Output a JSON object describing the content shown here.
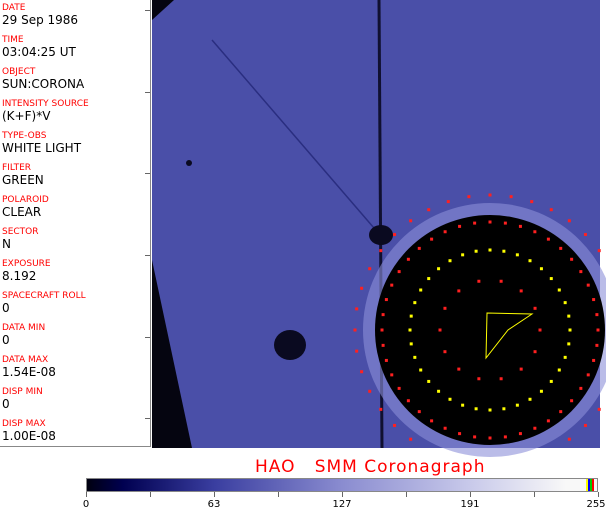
{
  "fields": [
    {
      "label": "DATE",
      "value": "29 Sep 1986"
    },
    {
      "label": "TIME",
      "value": "03:04:25 UT"
    },
    {
      "label": "OBJECT",
      "value": "SUN:CORONA"
    },
    {
      "label": "INTENSITY SOURCE",
      "value": "(K+F)*V"
    },
    {
      "label": "TYPE-OBS",
      "value": "WHITE LIGHT"
    },
    {
      "label": "FILTER",
      "value": "GREEN"
    },
    {
      "label": "POLAROID",
      "value": "CLEAR"
    },
    {
      "label": "SECTOR",
      "value": "N"
    },
    {
      "label": "EXPOSURE",
      "value": "8.192"
    },
    {
      "label": "SPACECRAFT ROLL",
      "value": "0"
    },
    {
      "label": "DATA MIN",
      "value": "0"
    },
    {
      "label": "DATA MAX",
      "value": "1.54E-08"
    },
    {
      "label": "DISP MIN",
      "value": "0"
    },
    {
      "label": "DISP MAX",
      "value": "1.00E-08"
    }
  ],
  "title": "HAO   SMM Coronagraph",
  "colorbar": {
    "ticks": [
      "0",
      "63",
      "127",
      "191",
      "255"
    ],
    "colors": {
      "low": "#000010",
      "mid": "#8a8cd0",
      "high": "#f8f8f8"
    }
  },
  "colors": {
    "label": "#ff0000",
    "image_blue": "#4a4fa8"
  }
}
